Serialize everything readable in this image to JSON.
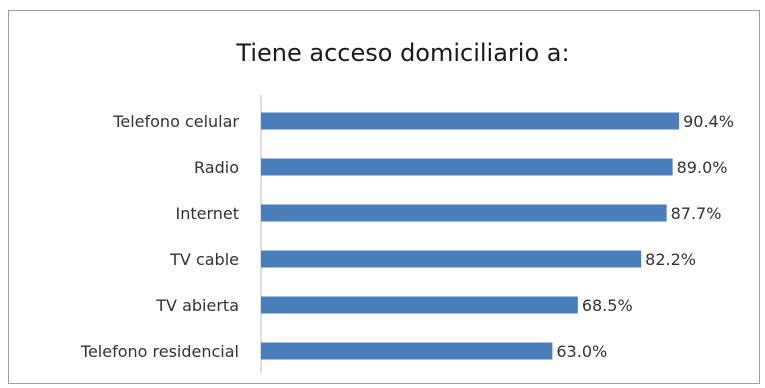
{
  "chart_data": {
    "type": "bar",
    "orientation": "horizontal",
    "title": "Tiene acceso domiciliario a:",
    "categories": [
      "Telefono celular",
      "Radio",
      "Internet",
      "TV cable",
      "TV abierta",
      "Telefono residencial"
    ],
    "values": [
      90.4,
      89.0,
      87.7,
      82.2,
      68.5,
      63.0
    ],
    "value_labels": [
      "90.4%",
      "89.0%",
      "87.7%",
      "82.2%",
      "68.5%",
      "63.0%"
    ],
    "xlim": [
      0,
      100
    ],
    "grid": false,
    "legend": "none",
    "bar_color": "#4a7ebb"
  }
}
